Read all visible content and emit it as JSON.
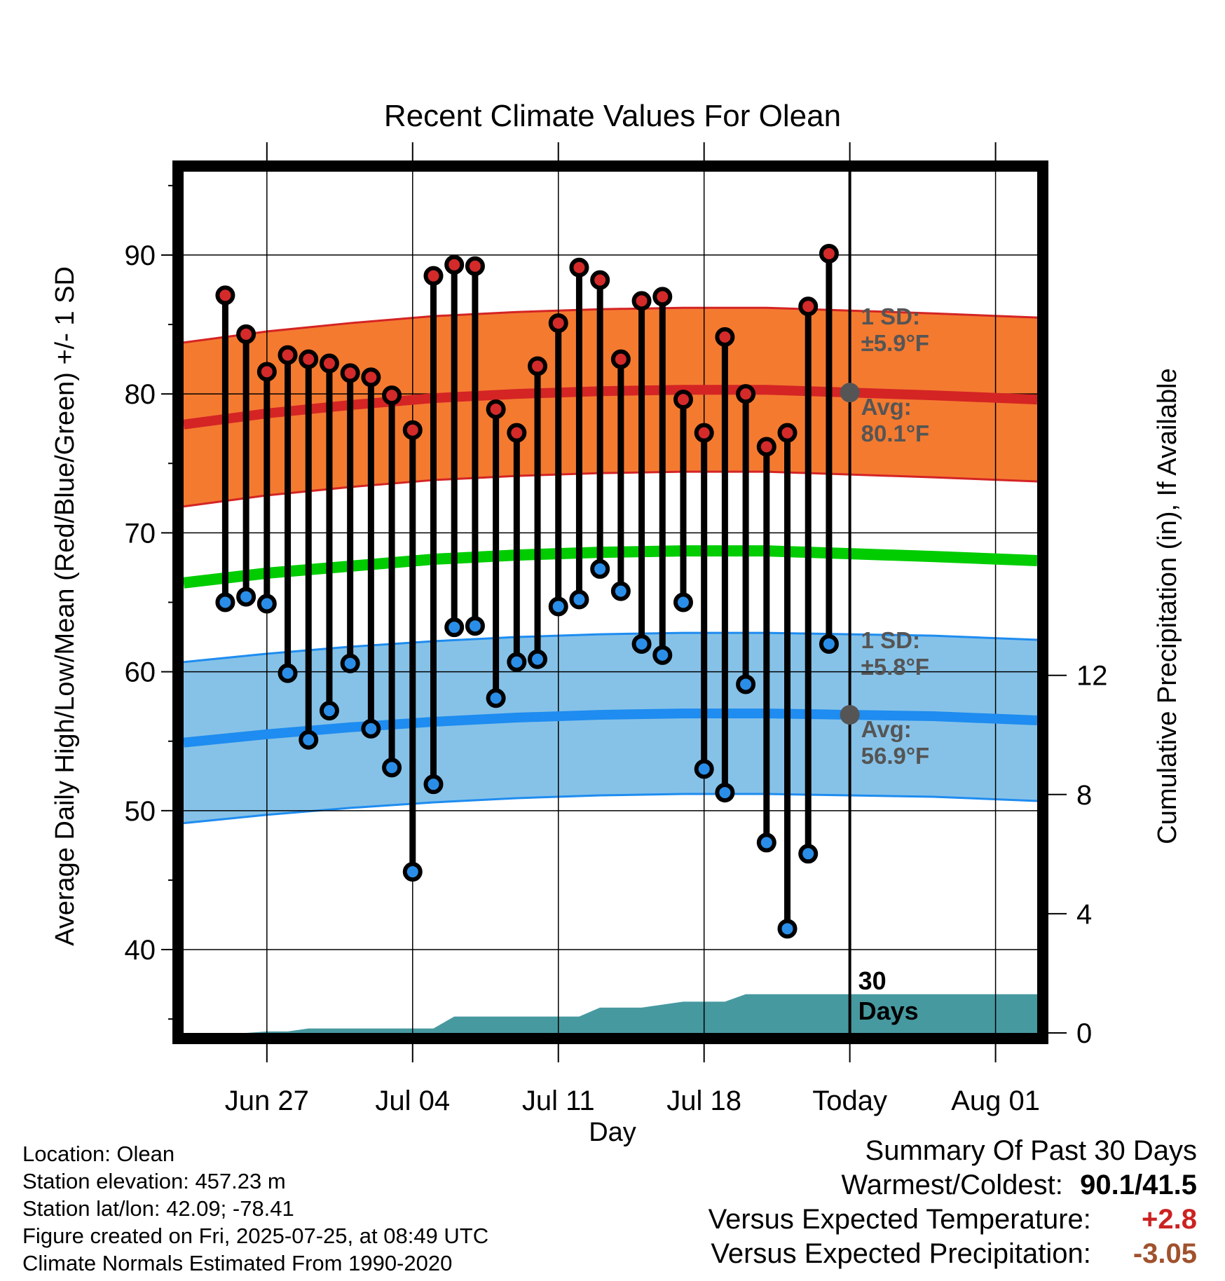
{
  "chart_data": {
    "type": "line",
    "title": "Recent Climate Values For Olean",
    "xlabel": "Day",
    "ylabel_left": "Average Daily High/Low/Mean (Red/Blue/Green) +/- 1 SD",
    "ylabel_right": "Cumulative Precipitation (in), If Available",
    "ylim_left": [
      34,
      96
    ],
    "ylim_right": [
      0,
      28.9
    ],
    "yticks_left": [
      40,
      50,
      60,
      70,
      80,
      90
    ],
    "yticks_right": [
      0,
      4,
      8,
      12
    ],
    "x_tick_labels": [
      "Jun 27",
      "Jul 04",
      "Jul 11",
      "Jul 18",
      "Today",
      "Aug 01"
    ],
    "x_tick_days": [
      "2025-06-27",
      "2025-07-04",
      "2025-07-11",
      "2025-07-18",
      "2025-07-25",
      "2025-08-01"
    ],
    "x_range": [
      "2025-06-23",
      "2025-08-03"
    ],
    "grid": true,
    "today": "2025-07-25",
    "today_label": "30 Days",
    "observed": {
      "dates": [
        "2025-06-25",
        "2025-06-26",
        "2025-06-27",
        "2025-06-28",
        "2025-06-29",
        "2025-06-30",
        "2025-07-01",
        "2025-07-02",
        "2025-07-03",
        "2025-07-04",
        "2025-07-05",
        "2025-07-06",
        "2025-07-07",
        "2025-07-08",
        "2025-07-09",
        "2025-07-10",
        "2025-07-11",
        "2025-07-12",
        "2025-07-13",
        "2025-07-14",
        "2025-07-15",
        "2025-07-16",
        "2025-07-17",
        "2025-07-18",
        "2025-07-19",
        "2025-07-20",
        "2025-07-21",
        "2025-07-22",
        "2025-07-23",
        "2025-07-24"
      ],
      "high": [
        87.1,
        84.3,
        81.6,
        82.8,
        82.5,
        82.2,
        81.5,
        81.2,
        79.9,
        77.4,
        88.5,
        89.3,
        89.2,
        78.9,
        77.2,
        82.0,
        85.1,
        89.1,
        88.2,
        82.5,
        86.7,
        87.0,
        79.6,
        77.2,
        84.1,
        80.0,
        76.2,
        77.2,
        86.3,
        90.1
      ],
      "low": [
        65.0,
        65.4,
        64.9,
        59.9,
        55.1,
        57.2,
        60.6,
        55.9,
        53.1,
        45.6,
        51.9,
        63.2,
        63.3,
        58.1,
        60.7,
        60.9,
        64.7,
        65.2,
        67.4,
        65.8,
        62.0,
        61.2,
        65.0,
        53.0,
        51.3,
        59.1,
        47.7,
        41.5,
        46.9,
        62.0
      ]
    },
    "normals": {
      "dates": [
        "2025-06-23",
        "2025-06-27",
        "2025-07-01",
        "2025-07-05",
        "2025-07-09",
        "2025-07-13",
        "2025-07-17",
        "2025-07-21",
        "2025-07-25",
        "2025-07-29",
        "2025-08-03"
      ],
      "high_mean": [
        77.8,
        78.6,
        79.2,
        79.7,
        80.0,
        80.2,
        80.3,
        80.3,
        80.1,
        79.9,
        79.6
      ],
      "high_sd": 5.9,
      "low_mean": [
        54.9,
        55.5,
        56.0,
        56.4,
        56.7,
        56.9,
        57.0,
        57.0,
        56.9,
        56.8,
        56.5
      ],
      "low_sd": 5.8,
      "mean": [
        66.4,
        67.1,
        67.6,
        68.1,
        68.4,
        68.6,
        68.7,
        68.7,
        68.5,
        68.3,
        68.0
      ]
    },
    "precip": {
      "dates": [
        "2025-06-23",
        "2025-06-26",
        "2025-06-27",
        "2025-06-28",
        "2025-06-29",
        "2025-07-05",
        "2025-07-06",
        "2025-07-12",
        "2025-07-13",
        "2025-07-15",
        "2025-07-16",
        "2025-07-17",
        "2025-07-19",
        "2025-07-20",
        "2025-08-03"
      ],
      "cumulative": [
        0.0,
        0.0,
        0.05,
        0.05,
        0.15,
        0.15,
        0.55,
        0.55,
        0.85,
        0.85,
        0.95,
        1.05,
        1.05,
        1.3,
        1.3
      ]
    },
    "annotations": {
      "high_sd_label": "1 SD:",
      "high_sd_value": "±5.9°F",
      "high_avg_label": "Avg:",
      "high_avg_value": "80.1°F",
      "low_sd_label": "1 SD:",
      "low_sd_value": "±5.8°F",
      "low_avg_label": "Avg:",
      "low_avg_value": "56.9°F",
      "today_avg_high": 80.1,
      "today_avg_low": 56.9
    },
    "colors": {
      "high_band": "#f47a30",
      "high_line": "#d42424",
      "low_band": "#86c2e8",
      "low_line": "#1e8cf0",
      "mean_line": "#00cc00",
      "precip": "#4799a0",
      "high_marker": "#d42a2a",
      "low_marker": "#2a8ee8"
    }
  },
  "info": {
    "location": "Location: Olean",
    "elevation": "Station elevation: 457.23 m",
    "latlon": "Station lat/lon: 42.09; -78.41",
    "created": "Figure created on Fri, 2025-07-25, at 08:49 UTC",
    "normals": "Climate Normals Estimated From 1990-2020"
  },
  "summary": {
    "heading": "Summary Of Past 30 Days",
    "warm_cold_label": "Warmest/Coldest:",
    "warm_cold_value": "90.1/41.5",
    "temp_label": "Versus Expected Temperature:",
    "temp_value": "+2.8",
    "temp_color": "#cc2222",
    "precip_label": "Versus Expected Precipitation:",
    "precip_value": "-3.05",
    "precip_color": "#a0522d"
  }
}
